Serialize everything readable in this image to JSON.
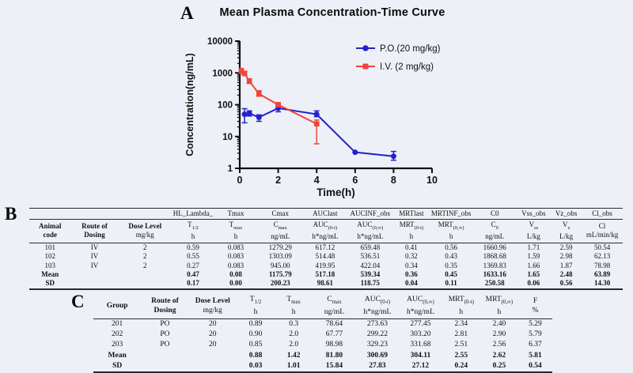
{
  "panel_a": {
    "label": "A",
    "chart_data": {
      "type": "line",
      "title": "Mean Plasma Concentration-Time Curve",
      "xlabel": "Time(h)",
      "ylabel": "Concentration(ng/mL)",
      "x_scale": "linear",
      "y_scale": "log",
      "xlim": [
        0,
        10
      ],
      "ylim": [
        1,
        10000
      ],
      "x_ticks": [
        0,
        2,
        4,
        6,
        8,
        10
      ],
      "y_ticks": [
        1,
        10,
        100,
        1000,
        10000
      ],
      "grid": false,
      "legend_position": "top-right-inside",
      "series": [
        {
          "name": "P.O.(20 mg/kg)",
          "color": "#2222cd",
          "marker": "circle",
          "x": [
            0.25,
            0.5,
            1,
            2,
            4,
            6,
            8
          ],
          "y": [
            50,
            54,
            40,
            78,
            50,
            3.2,
            2.4
          ],
          "y_err_low": [
            27,
            44,
            30,
            60,
            42,
            3.2,
            1.8
          ],
          "y_err_high": [
            75,
            64,
            48,
            97,
            64,
            3.2,
            3.4
          ]
        },
        {
          "name": "I.V. (2 mg/kg)",
          "color": "#f0453c",
          "marker": "square",
          "x": [
            0.083,
            0.25,
            0.5,
            1,
            2,
            4
          ],
          "y": [
            1150,
            950,
            550,
            220,
            100,
            25
          ],
          "y_err_low": [
            960,
            830,
            465,
            185,
            86,
            5.9
          ],
          "y_err_high": [
            1380,
            1130,
            650,
            275,
            116,
            33
          ]
        }
      ]
    }
  },
  "panel_b": {
    "label": "B",
    "table": {
      "columns": [
        {
          "top": "",
          "n1": "Animal",
          "n2": "code"
        },
        {
          "top": "",
          "n1": "Route of",
          "n2": "Dosing"
        },
        {
          "top": "",
          "n1": "Dose Level",
          "n2": "mg/kg",
          "n2bold": false
        },
        {
          "top": "HL_Lambda_",
          "sym": "T",
          "sub": "1/2",
          "unit": "h"
        },
        {
          "top": "Tmax",
          "sym": "T",
          "sub": "max",
          "unit": "h"
        },
        {
          "top": "Cmax",
          "sym": "C",
          "sub": "max",
          "unit": "ng/mL"
        },
        {
          "top": "AUClast",
          "sym": "AUC",
          "sub": "(0-t)",
          "unit": "h*ng/mL"
        },
        {
          "top": "AUCINF_obs",
          "sym": "AUC",
          "sub": "(0,∞)",
          "unit": "h*ng/mL"
        },
        {
          "top": "MRTlast",
          "sym": "MRT",
          "sub": "(0-t)",
          "unit": "h"
        },
        {
          "top": "MRTINF_obs",
          "sym": "MRT",
          "sub": "(0,∞)",
          "unit": "h"
        },
        {
          "top": "C0",
          "sym": "C",
          "sub": "0",
          "unit": "ng/mL"
        },
        {
          "top": "Vss_obs",
          "sym": "V",
          "sub": "ss",
          "unit": "L/kg"
        },
        {
          "top": "Vz_obs",
          "sym": "V",
          "sub": "z",
          "unit": "L/kg"
        },
        {
          "top": "Cl_obs",
          "sym": "Cl",
          "sub": "",
          "unit": "mL/min/kg"
        }
      ],
      "rows": [
        [
          "101",
          "IV",
          "2",
          "0.59",
          "0.083",
          "1279.29",
          "617.12",
          "659.48",
          "0.41",
          "0.56",
          "1660.96",
          "1.71",
          "2.59",
          "50.54"
        ],
        [
          "102",
          "IV",
          "2",
          "0.55",
          "0.083",
          "1303.09",
          "514.48",
          "536.51",
          "0.32",
          "0.43",
          "1868.68",
          "1.59",
          "2.98",
          "62.13"
        ],
        [
          "103",
          "IV",
          "2",
          "0.27",
          "0.083",
          "945.00",
          "419.95",
          "422.04",
          "0.34",
          "0.35",
          "1369.83",
          "1.66",
          "1.87",
          "78.98"
        ],
        [
          "Mean",
          "",
          "",
          "0.47",
          "0.08",
          "1175.79",
          "517.18",
          "539.34",
          "0.36",
          "0.45",
          "1633.16",
          "1.65",
          "2.48",
          "63.89"
        ],
        [
          "SD",
          "",
          "",
          "0.17",
          "0.00",
          "200.23",
          "98.61",
          "118.75",
          "0.04",
          "0.11",
          "250.58",
          "0.06",
          "0.56",
          "14.30"
        ]
      ],
      "bold_rows": [
        3,
        4
      ]
    }
  },
  "panel_c": {
    "label": "C",
    "table": {
      "columns": [
        {
          "top": "",
          "n1": "Group",
          "n2": ""
        },
        {
          "top": "",
          "n1": "Route of",
          "n2": "Dosing"
        },
        {
          "top": "",
          "n1": "Dose Level",
          "n2": "mg/kg",
          "n2bold": false
        },
        {
          "top": "",
          "sym": "T",
          "sub": "1/2",
          "unit": "h"
        },
        {
          "top": "",
          "sym": "T",
          "sub": "max",
          "unit": "h"
        },
        {
          "top": "",
          "sym": "C",
          "sub": "max",
          "unit": "ng/mL"
        },
        {
          "top": "",
          "sym": "AUC",
          "sub": "(0-t)",
          "unit": "h*ng/mL"
        },
        {
          "top": "",
          "sym": "AUC",
          "sub": "(0,∞)",
          "unit": "h*ng/mL"
        },
        {
          "top": "",
          "sym": "MRT",
          "sub": "(0-t)",
          "unit": "h"
        },
        {
          "top": "",
          "sym": "MRT",
          "sub": "(0,∞)",
          "unit": "h"
        },
        {
          "top": "",
          "sym": "F",
          "sub": "",
          "unit": "%"
        }
      ],
      "rows": [
        [
          "201",
          "PO",
          "20",
          "0.89",
          "0.3",
          "78.64",
          "273.63",
          "277.45",
          "2.34",
          "2.40",
          "5.29"
        ],
        [
          "202",
          "PO",
          "20",
          "0.90",
          "2.0",
          "67.77",
          "299.22",
          "303.20",
          "2.81",
          "2.90",
          "5.79"
        ],
        [
          "203",
          "PO",
          "20",
          "0.85",
          "2.0",
          "98.98",
          "329.23",
          "331.68",
          "2.51",
          "2.56",
          "6.37"
        ],
        [
          "Mean",
          "",
          "",
          "0.88",
          "1.42",
          "81.80",
          "300.69",
          "304.11",
          "2.55",
          "2.62",
          "5.81"
        ],
        [
          "SD",
          "",
          "",
          "0.03",
          "1.01",
          "15.84",
          "27.83",
          "27.12",
          "0.24",
          "0.25",
          "0.54"
        ]
      ],
      "bold_rows": [
        3,
        4
      ]
    }
  }
}
